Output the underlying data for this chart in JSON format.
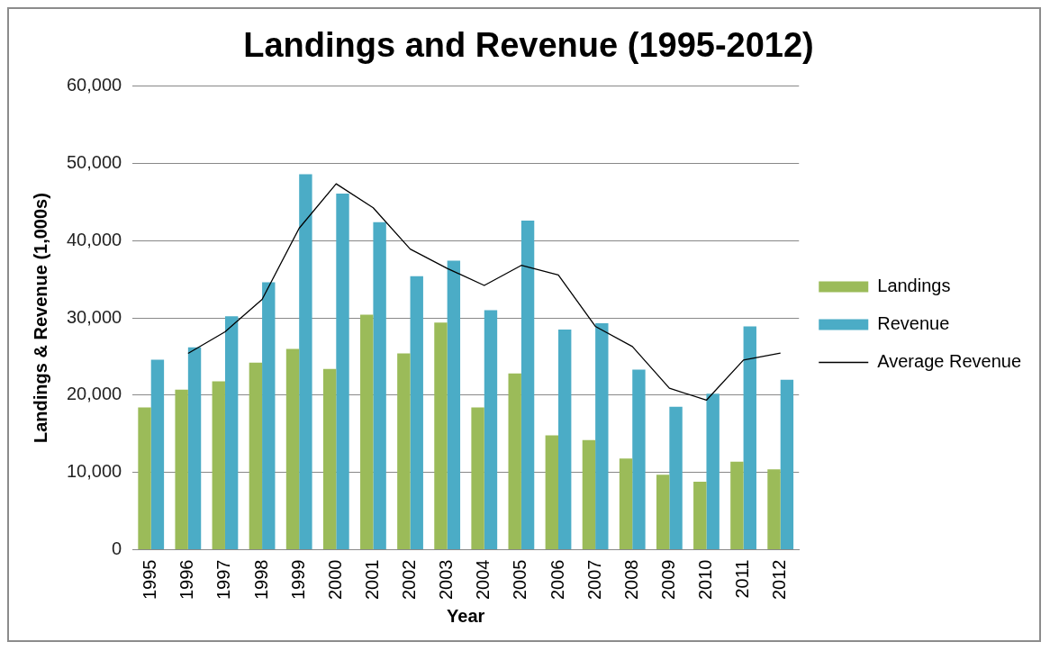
{
  "chart_data": {
    "type": "bar",
    "title": "Landings and Revenue (1995-2012)",
    "xlabel": "Year",
    "ylabel": "Landings & Revenue (1,000s)",
    "categories": [
      "1995",
      "1996",
      "1997",
      "1998",
      "1999",
      "2000",
      "2001",
      "2002",
      "2003",
      "2004",
      "2005",
      "2006",
      "2007",
      "2008",
      "2009",
      "2010",
      "2011",
      "2012"
    ],
    "series": [
      {
        "name": "Landings",
        "color": "#9bbb59",
        "values": [
          18400,
          20700,
          21800,
          24200,
          26000,
          23400,
          30400,
          25400,
          29400,
          18400,
          22800,
          14800,
          14200,
          11800,
          9700,
          8800,
          11400,
          10400
        ]
      },
      {
        "name": "Revenue",
        "color": "#4bacc6",
        "values": [
          24600,
          26200,
          30200,
          34600,
          48600,
          46100,
          42400,
          35400,
          37400,
          31000,
          42600,
          28500,
          29300,
          23300,
          18500,
          20200,
          28900,
          22000
        ]
      },
      {
        "name": "Average Revenue",
        "type": "line",
        "color": "#000000",
        "values": [
          null,
          25400,
          28200,
          32400,
          41600,
          47350,
          44250,
          38900,
          36400,
          34200,
          36800,
          35550,
          28900,
          26300,
          20900,
          19350,
          24550,
          25450
        ]
      }
    ],
    "ylim": [
      0,
      60000
    ],
    "yticks": [
      {
        "value": 0,
        "label": "0"
      },
      {
        "value": 10000,
        "label": "10,000"
      },
      {
        "value": 20000,
        "label": "20,000"
      },
      {
        "value": 30000,
        "label": "30,000"
      },
      {
        "value": 40000,
        "label": "40,000"
      },
      {
        "value": 50000,
        "label": "50,000"
      },
      {
        "value": 60000,
        "label": "60,000"
      }
    ],
    "grid": "y",
    "legend": "right",
    "marker": "none"
  }
}
